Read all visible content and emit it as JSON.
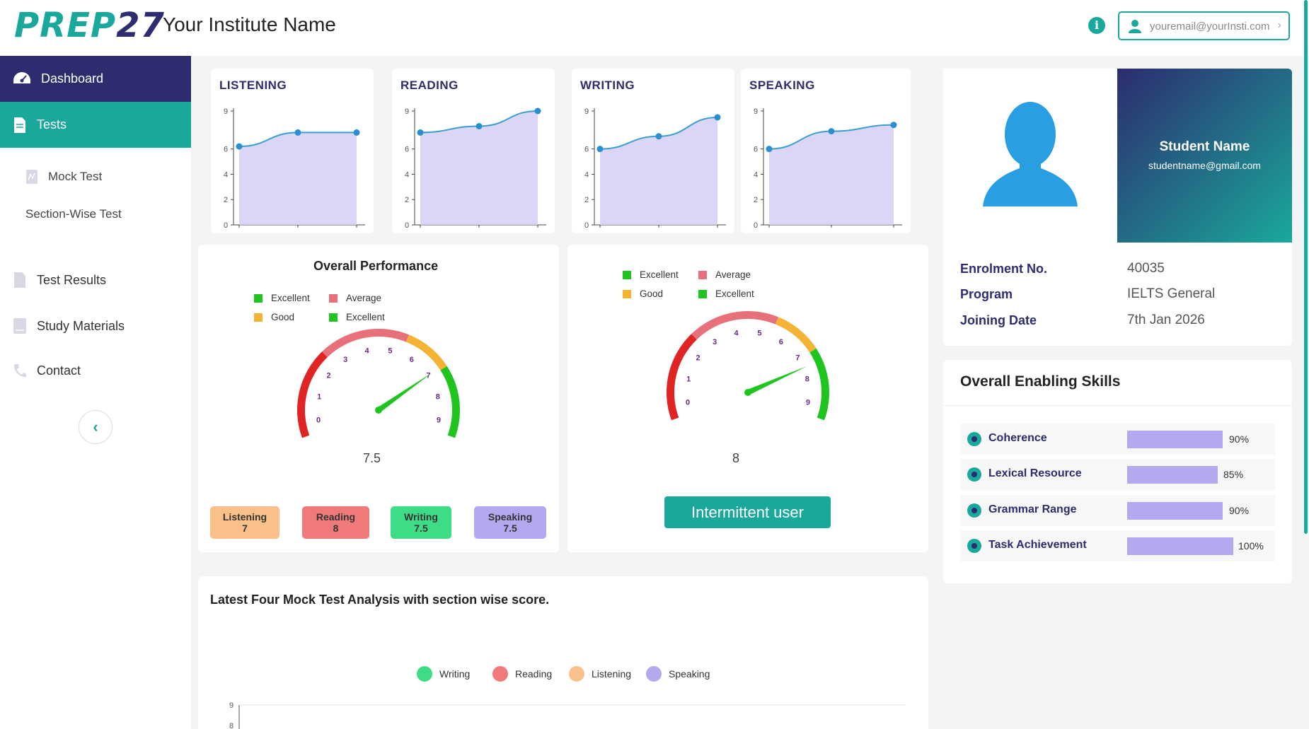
{
  "header": {
    "logo_a": "PREP",
    "logo_b": "27",
    "institute_name": "Your Institute Name",
    "email": "youremail@yourInsti.com"
  },
  "sidebar": {
    "dashboard": "Dashboard",
    "tests": "Tests",
    "mock_test": "Mock Test",
    "section_wise": "Section-Wise Test",
    "test_results": "Test Results",
    "study_materials": "Study Materials",
    "contact": "Contact"
  },
  "mini_charts": [
    {
      "title": "LISTENING",
      "values": [
        6.2,
        7.3,
        7.3
      ]
    },
    {
      "title": "READING",
      "values": [
        7.3,
        7.8,
        9.0
      ]
    },
    {
      "title": "WRITING",
      "values": [
        6.0,
        7.0,
        8.5
      ]
    },
    {
      "title": "SPEAKING",
      "values": [
        6.0,
        7.4,
        7.9
      ]
    }
  ],
  "mini_axis": {
    "ticks": [
      "0",
      "2",
      "4",
      "6",
      "9"
    ],
    "tick_values": [
      0,
      2,
      4,
      6,
      9
    ],
    "ymax": 9
  },
  "overall": {
    "title": "Overall Performance",
    "legend": [
      {
        "label": "Excellent",
        "color": "#1fc41f"
      },
      {
        "label": "Average",
        "color": "#e8707a"
      },
      {
        "label": "Good",
        "color": "#f5b335"
      },
      {
        "label": "Excellent",
        "color": "#1fc41f"
      }
    ],
    "score": "7.5",
    "score_value": 7.5,
    "chips": [
      {
        "name": "Listening",
        "score": "7",
        "color": "#f9c08a"
      },
      {
        "name": "Reading",
        "score": "8",
        "color": "#f07a7a"
      },
      {
        "name": "Writing",
        "score": "7.5",
        "color": "#3edc87"
      },
      {
        "name": "Speaking",
        "score": "7.5",
        "color": "#b3a9ef"
      }
    ]
  },
  "second_gauge": {
    "legend": [
      {
        "label": "Excellent",
        "color": "#1fc41f"
      },
      {
        "label": "Average",
        "color": "#e8707a"
      },
      {
        "label": "Good",
        "color": "#f5b335"
      },
      {
        "label": "Excellent",
        "color": "#1fc41f"
      }
    ],
    "score": "8",
    "score_value": 8,
    "button": "Intermittent user"
  },
  "gauge_ticks": [
    "0",
    "1",
    "2",
    "3",
    "4",
    "5",
    "6",
    "7",
    "8",
    "9"
  ],
  "profile": {
    "name": "Student Name",
    "email": "studentname@gmail.com",
    "enrolment_label": "Enrolment No.",
    "enrolment": "40035",
    "program_label": "Program",
    "program": "IELTS General",
    "joining_label": "Joining Date",
    "joining": "7th Jan 2026"
  },
  "skills": {
    "title": "Overall Enabling Skills",
    "items": [
      {
        "label": "Coherence",
        "pct": "90%",
        "value": 90
      },
      {
        "label": "Lexical Resource",
        "pct": "85%",
        "value": 85
      },
      {
        "label": "Grammar Range",
        "pct": "90%",
        "value": 90
      },
      {
        "label": "Task Achievement",
        "pct": "100%",
        "value": 100
      }
    ]
  },
  "bottom": {
    "title": "Latest Four Mock Test Analysis with section wise score.",
    "legend": [
      {
        "label": "Writing",
        "color": "#3edc87"
      },
      {
        "label": "Reading",
        "color": "#f07a7a"
      },
      {
        "label": "Listening",
        "color": "#f9c08a"
      },
      {
        "label": "Speaking",
        "color": "#b3a9ef"
      }
    ],
    "ticks": [
      "9",
      "8"
    ]
  },
  "colors": {
    "brand_teal": "#1aa89c",
    "brand_navy": "#2c2c6e"
  }
}
